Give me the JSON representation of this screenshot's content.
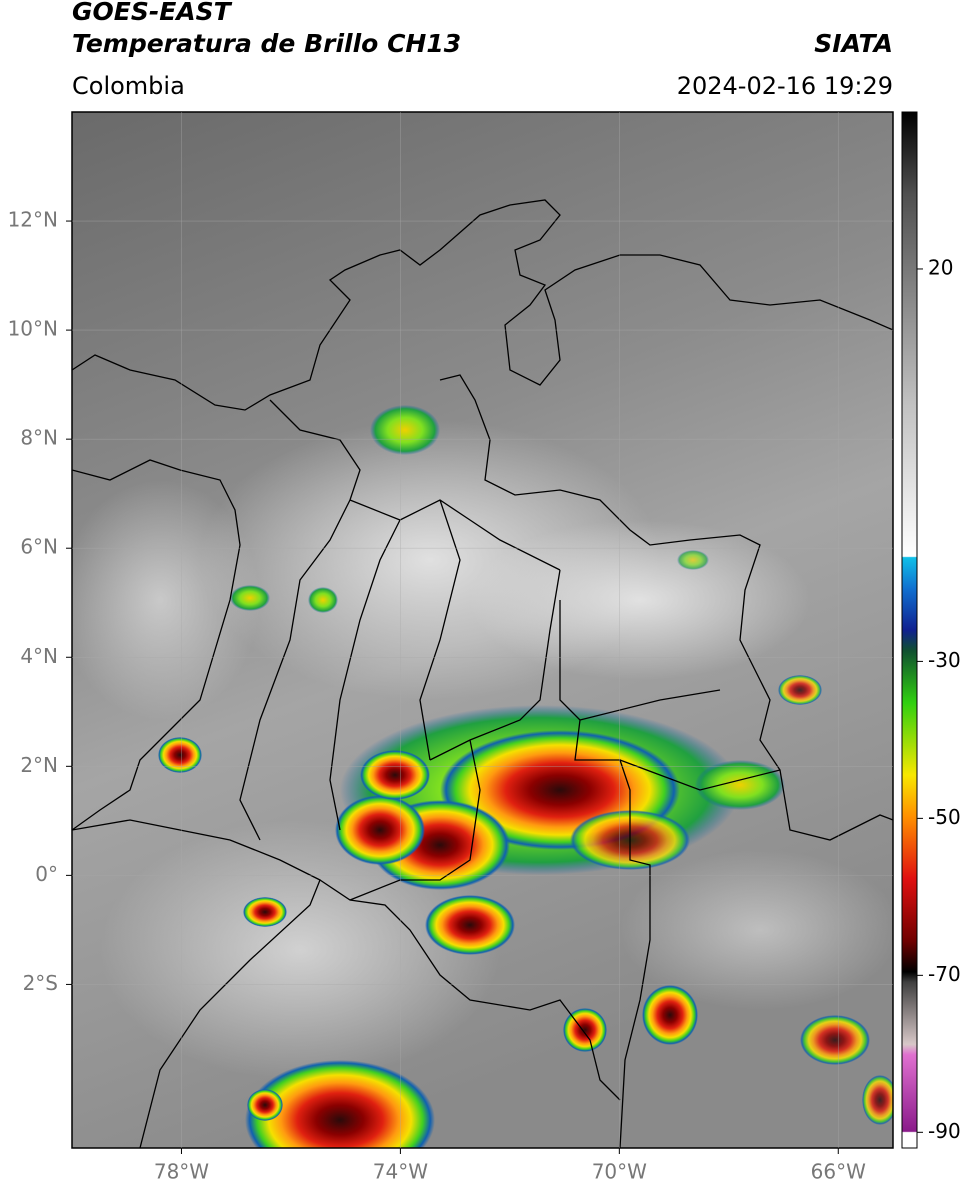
{
  "header": {
    "title": "GOES-EAST",
    "subtitle": "Temperatura de Brillo CH13",
    "source": "SIATA",
    "region": "Colombia",
    "timestamp": "2024-02-16 19:29"
  },
  "map": {
    "xlim": [
      -80,
      -65
    ],
    "ylim": [
      -5,
      14
    ],
    "xticks": [
      {
        "value": -78,
        "label": "78°W"
      },
      {
        "value": -74,
        "label": "74°W"
      },
      {
        "value": -70,
        "label": "70°W"
      },
      {
        "value": -66,
        "label": "66°W"
      }
    ],
    "yticks": [
      {
        "value": 12,
        "label": "12°N"
      },
      {
        "value": 10,
        "label": "10°N"
      },
      {
        "value": 8,
        "label": "8°N"
      },
      {
        "value": 6,
        "label": "6°N"
      },
      {
        "value": 4,
        "label": "4°N"
      },
      {
        "value": 2,
        "label": "2°N"
      },
      {
        "value": 0,
        "label": "0°"
      },
      {
        "value": -2,
        "label": "2°S"
      }
    ]
  },
  "colorbar": {
    "range": [
      -92,
      40
    ],
    "ticks": [
      20,
      -30,
      -50,
      -70,
      -90
    ]
  }
}
